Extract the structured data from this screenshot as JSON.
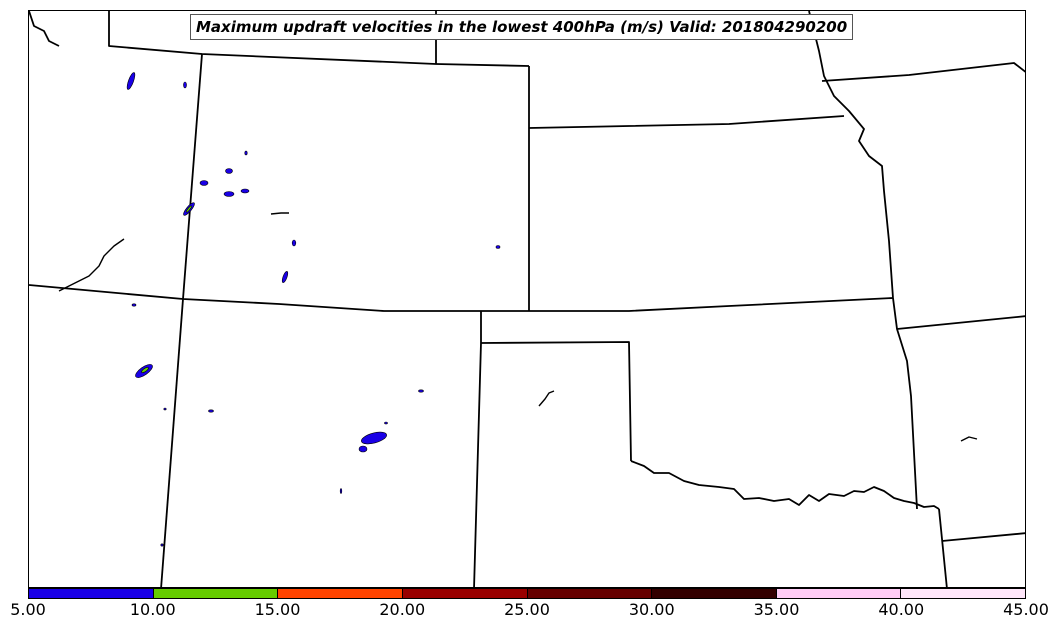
{
  "map": {
    "title": "Maximum updraft velocities in the lowest 400hPa (m/s) Valid: 201804290200"
  },
  "colorbar": {
    "tick_labels": [
      "5.00",
      "10.00",
      "15.00",
      "20.00",
      "25.00",
      "30.00",
      "35.00",
      "40.00",
      "45.00"
    ],
    "colors": [
      "#1a00e6",
      "#66cc00",
      "#ff4400",
      "#990000",
      "#660000",
      "#330000",
      "#ffccf5",
      "#ffe6fa"
    ]
  },
  "colors": {
    "boundary": "#000000",
    "updraft_low": "#1a00e6",
    "updraft_mid": "#66cc00"
  }
}
